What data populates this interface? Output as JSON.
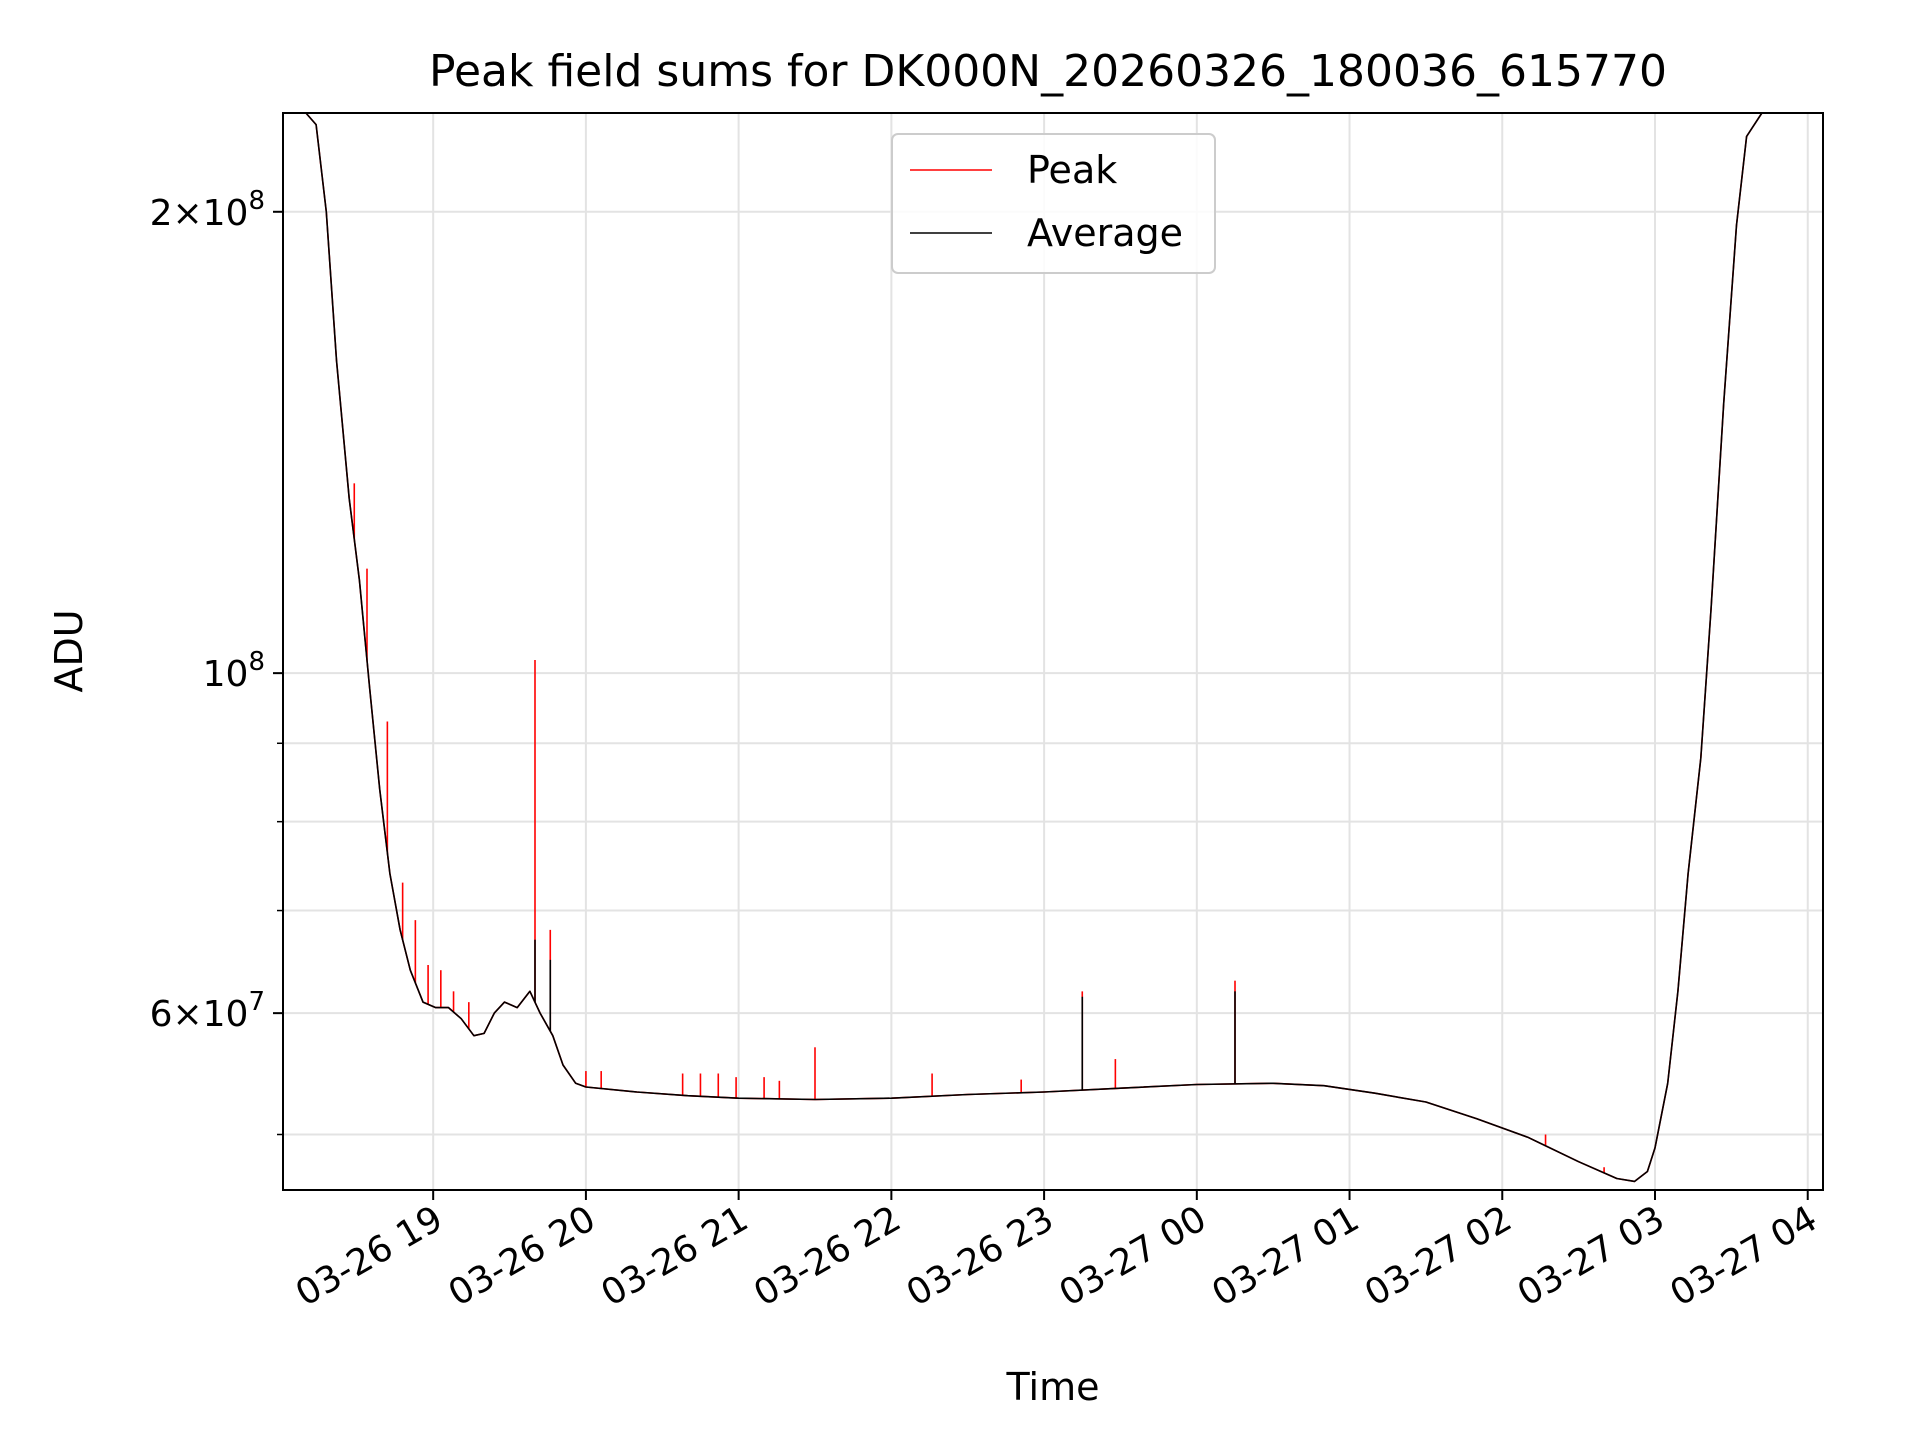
{
  "chart_data": {
    "type": "line",
    "title": "Peak field sums for DK000N_20260326_180036_615770",
    "xlabel": "Time",
    "ylabel": "ADU",
    "y_scale": "log",
    "ylim": [
      46000000,
      232000000
    ],
    "xlim": [
      "2026-03-26 18:01",
      "2026-03-27 04:06"
    ],
    "grid": true,
    "legend_position": "upper center",
    "x_ticks": [
      {
        "t": "2026-03-26 19:00",
        "label": "03-26 19"
      },
      {
        "t": "2026-03-26 20:00",
        "label": "03-26 20"
      },
      {
        "t": "2026-03-26 21:00",
        "label": "03-26 21"
      },
      {
        "t": "2026-03-26 22:00",
        "label": "03-26 22"
      },
      {
        "t": "2026-03-26 23:00",
        "label": "03-26 23"
      },
      {
        "t": "2026-03-27 00:00",
        "label": "03-27 00"
      },
      {
        "t": "2026-03-27 01:00",
        "label": "03-27 01"
      },
      {
        "t": "2026-03-27 02:00",
        "label": "03-27 02"
      },
      {
        "t": "2026-03-27 03:00",
        "label": "03-27 03"
      },
      {
        "t": "2026-03-27 04:00",
        "label": "03-27 04"
      }
    ],
    "y_ticks": [
      {
        "value": 200000000,
        "base": "2",
        "exp": "8"
      },
      {
        "value": 100000000,
        "base": "",
        "exp": "8"
      },
      {
        "value": 60000000,
        "base": "6",
        "exp": "7"
      }
    ],
    "y_minor_ticks": [
      50000000,
      70000000,
      80000000,
      90000000
    ],
    "series": [
      {
        "name": "Peak",
        "color": "#ff0000",
        "points": [
          [
            "2026-03-26 18:01",
            232000000
          ],
          [
            "2026-03-26 18:10",
            232000000
          ],
          [
            "2026-03-26 18:14",
            228000000
          ],
          [
            "2026-03-26 18:18",
            200000000
          ],
          [
            "2026-03-26 18:22",
            160000000
          ],
          [
            "2026-03-26 18:27",
            130000000
          ],
          [
            "2026-03-26 18:31",
            115000000
          ],
          [
            "2026-03-26 18:35",
            98000000
          ],
          [
            "2026-03-26 18:39",
            84000000
          ],
          [
            "2026-03-26 18:43",
            74000000
          ],
          [
            "2026-03-26 18:47",
            68000000
          ],
          [
            "2026-03-26 18:51",
            64000000
          ],
          [
            "2026-03-26 18:56",
            61000000
          ],
          [
            "2026-03-26 19:01",
            60500000
          ],
          [
            "2026-03-26 19:06",
            60500000
          ],
          [
            "2026-03-26 19:11",
            59500000
          ],
          [
            "2026-03-26 19:16",
            58000000
          ],
          [
            "2026-03-26 19:20",
            58200000
          ],
          [
            "2026-03-26 19:24",
            60000000
          ],
          [
            "2026-03-26 19:28",
            61000000
          ],
          [
            "2026-03-26 19:33",
            60500000
          ],
          [
            "2026-03-26 19:38",
            62000000
          ],
          [
            "2026-03-26 19:42",
            60000000
          ],
          [
            "2026-03-26 19:47",
            58000000
          ],
          [
            "2026-03-26 19:51",
            55500000
          ],
          [
            "2026-03-26 19:56",
            54000000
          ],
          [
            "2026-03-26 20:00",
            53700000
          ],
          [
            "2026-03-26 20:20",
            53300000
          ],
          [
            "2026-03-26 20:40",
            53000000
          ],
          [
            "2026-03-26 21:00",
            52800000
          ],
          [
            "2026-03-26 21:30",
            52700000
          ],
          [
            "2026-03-26 22:00",
            52800000
          ],
          [
            "2026-03-26 22:30",
            53100000
          ],
          [
            "2026-03-26 23:00",
            53300000
          ],
          [
            "2026-03-26 23:30",
            53600000
          ],
          [
            "2026-03-27 00:00",
            53900000
          ],
          [
            "2026-03-27 00:30",
            54000000
          ],
          [
            "2026-03-27 00:50",
            53800000
          ],
          [
            "2026-03-27 01:10",
            53200000
          ],
          [
            "2026-03-27 01:30",
            52500000
          ],
          [
            "2026-03-27 01:50",
            51200000
          ],
          [
            "2026-03-27 02:10",
            49800000
          ],
          [
            "2026-03-27 02:30",
            48000000
          ],
          [
            "2026-03-27 02:45",
            46800000
          ],
          [
            "2026-03-27 02:52",
            46600000
          ],
          [
            "2026-03-27 02:57",
            47300000
          ],
          [
            "2026-03-27 03:00",
            49000000
          ],
          [
            "2026-03-27 03:05",
            54000000
          ],
          [
            "2026-03-27 03:09",
            62000000
          ],
          [
            "2026-03-27 03:13",
            74000000
          ],
          [
            "2026-03-27 03:18",
            88000000
          ],
          [
            "2026-03-27 03:22",
            110000000
          ],
          [
            "2026-03-27 03:27",
            150000000
          ],
          [
            "2026-03-27 03:32",
            196000000
          ],
          [
            "2026-03-27 03:36",
            224000000
          ],
          [
            "2026-03-27 03:42",
            232000000
          ],
          [
            "2026-03-27 04:06",
            232000000
          ]
        ],
        "spikes": [
          [
            "2026-03-26 18:29",
            133000000
          ],
          [
            "2026-03-26 18:34",
            117000000
          ],
          [
            "2026-03-26 18:42",
            93000000
          ],
          [
            "2026-03-26 18:48",
            73000000
          ],
          [
            "2026-03-26 18:53",
            69000000
          ],
          [
            "2026-03-26 18:58",
            64500000
          ],
          [
            "2026-03-26 19:03",
            64000000
          ],
          [
            "2026-03-26 19:08",
            62000000
          ],
          [
            "2026-03-26 19:14",
            61000000
          ],
          [
            "2026-03-26 19:40",
            102000000
          ],
          [
            "2026-03-26 19:46",
            68000000
          ],
          [
            "2026-03-26 20:00",
            55000000
          ],
          [
            "2026-03-26 20:06",
            55000000
          ],
          [
            "2026-03-26 20:38",
            54800000
          ],
          [
            "2026-03-26 20:45",
            54800000
          ],
          [
            "2026-03-26 20:52",
            54800000
          ],
          [
            "2026-03-26 20:59",
            54500000
          ],
          [
            "2026-03-26 21:10",
            54500000
          ],
          [
            "2026-03-26 21:16",
            54200000
          ],
          [
            "2026-03-26 21:30",
            57000000
          ],
          [
            "2026-03-26 22:16",
            54800000
          ],
          [
            "2026-03-26 22:51",
            54300000
          ],
          [
            "2026-03-26 23:15",
            62000000
          ],
          [
            "2026-03-26 23:28",
            56000000
          ],
          [
            "2026-03-27 00:15",
            63000000
          ],
          [
            "2026-03-27 02:17",
            50000000
          ],
          [
            "2026-03-27 02:40",
            47600000
          ]
        ]
      },
      {
        "name": "Average",
        "color": "#000000",
        "points": [
          [
            "2026-03-26 18:01",
            232000000
          ],
          [
            "2026-03-26 18:10",
            232000000
          ],
          [
            "2026-03-26 18:14",
            228000000
          ],
          [
            "2026-03-26 18:18",
            200000000
          ],
          [
            "2026-03-26 18:22",
            160000000
          ],
          [
            "2026-03-26 18:27",
            130000000
          ],
          [
            "2026-03-26 18:31",
            115000000
          ],
          [
            "2026-03-26 18:35",
            98000000
          ],
          [
            "2026-03-26 18:39",
            84000000
          ],
          [
            "2026-03-26 18:43",
            74000000
          ],
          [
            "2026-03-26 18:47",
            68000000
          ],
          [
            "2026-03-26 18:51",
            64000000
          ],
          [
            "2026-03-26 18:56",
            61000000
          ],
          [
            "2026-03-26 19:01",
            60500000
          ],
          [
            "2026-03-26 19:06",
            60500000
          ],
          [
            "2026-03-26 19:11",
            59500000
          ],
          [
            "2026-03-26 19:16",
            58000000
          ],
          [
            "2026-03-26 19:20",
            58200000
          ],
          [
            "2026-03-26 19:24",
            60000000
          ],
          [
            "2026-03-26 19:28",
            61000000
          ],
          [
            "2026-03-26 19:33",
            60500000
          ],
          [
            "2026-03-26 19:38",
            62000000
          ],
          [
            "2026-03-26 19:42",
            60000000
          ],
          [
            "2026-03-26 19:47",
            58000000
          ],
          [
            "2026-03-26 19:51",
            55500000
          ],
          [
            "2026-03-26 19:56",
            54000000
          ],
          [
            "2026-03-26 20:00",
            53700000
          ],
          [
            "2026-03-26 20:20",
            53300000
          ],
          [
            "2026-03-26 20:40",
            53000000
          ],
          [
            "2026-03-26 21:00",
            52800000
          ],
          [
            "2026-03-26 21:30",
            52700000
          ],
          [
            "2026-03-26 22:00",
            52800000
          ],
          [
            "2026-03-26 22:30",
            53100000
          ],
          [
            "2026-03-26 23:00",
            53300000
          ],
          [
            "2026-03-26 23:30",
            53600000
          ],
          [
            "2026-03-27 00:00",
            53900000
          ],
          [
            "2026-03-27 00:30",
            54000000
          ],
          [
            "2026-03-27 00:50",
            53800000
          ],
          [
            "2026-03-27 01:10",
            53200000
          ],
          [
            "2026-03-27 01:30",
            52500000
          ],
          [
            "2026-03-27 01:50",
            51200000
          ],
          [
            "2026-03-27 02:10",
            49800000
          ],
          [
            "2026-03-27 02:30",
            48000000
          ],
          [
            "2026-03-27 02:45",
            46800000
          ],
          [
            "2026-03-27 02:52",
            46600000
          ],
          [
            "2026-03-27 02:57",
            47300000
          ],
          [
            "2026-03-27 03:00",
            49000000
          ],
          [
            "2026-03-27 03:05",
            54000000
          ],
          [
            "2026-03-27 03:09",
            62000000
          ],
          [
            "2026-03-27 03:13",
            74000000
          ],
          [
            "2026-03-27 03:18",
            88000000
          ],
          [
            "2026-03-27 03:22",
            110000000
          ],
          [
            "2026-03-27 03:27",
            150000000
          ],
          [
            "2026-03-27 03:32",
            196000000
          ],
          [
            "2026-03-27 03:36",
            224000000
          ],
          [
            "2026-03-27 03:42",
            232000000
          ],
          [
            "2026-03-27 04:06",
            232000000
          ]
        ],
        "spikes": [
          [
            "2026-03-26 19:40",
            67000000
          ],
          [
            "2026-03-26 19:46",
            65000000
          ],
          [
            "2026-03-26 23:15",
            61500000
          ],
          [
            "2026-03-27 00:15",
            62000000
          ]
        ]
      }
    ]
  }
}
